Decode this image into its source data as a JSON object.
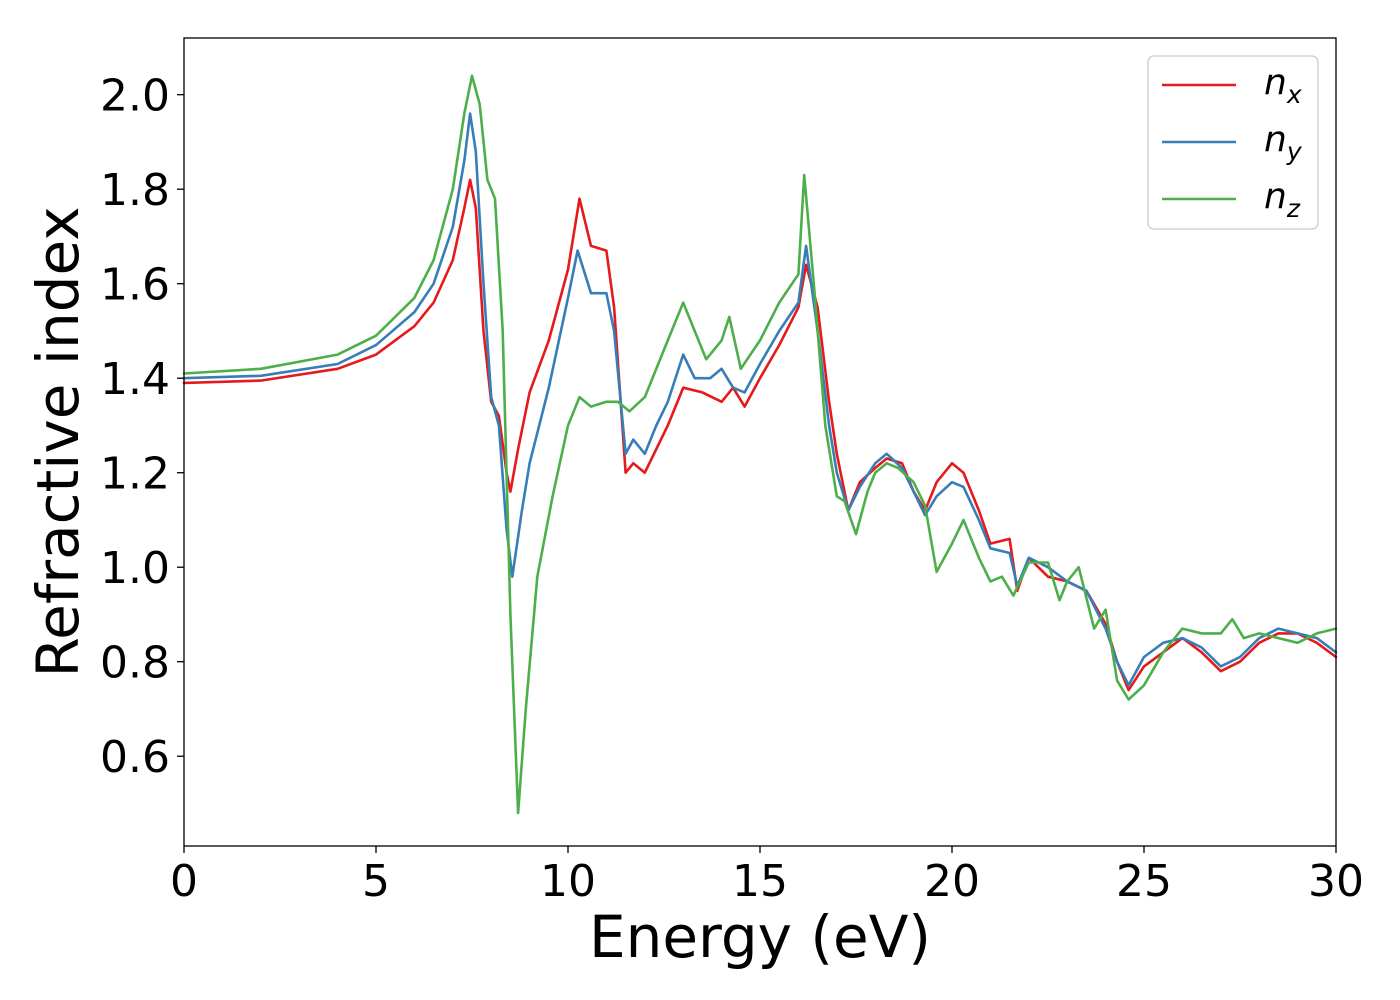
{
  "chart_data": {
    "type": "line",
    "xlabel": "Energy (eV)",
    "ylabel": "Refractive index",
    "xlim": [
      0,
      30
    ],
    "ylim": [
      0.41,
      2.12
    ],
    "xticks": [
      0,
      5,
      10,
      15,
      20,
      25,
      30
    ],
    "yticks": [
      0.6,
      0.8,
      1.0,
      1.2,
      1.4,
      1.6,
      1.8,
      2.0
    ],
    "xtick_labels": [
      "0",
      "5",
      "10",
      "15",
      "20",
      "25",
      "30"
    ],
    "ytick_labels": [
      "0.6",
      "0.8",
      "1.0",
      "1.2",
      "1.4",
      "1.6",
      "1.8",
      "2.0"
    ],
    "legend_position": "top-right",
    "grid": false,
    "series": [
      {
        "name": "n",
        "subscript": "x",
        "color": "#e41a1c",
        "points": [
          [
            0,
            1.39
          ],
          [
            2,
            1.395
          ],
          [
            4,
            1.42
          ],
          [
            5,
            1.45
          ],
          [
            6,
            1.51
          ],
          [
            6.5,
            1.56
          ],
          [
            7,
            1.65
          ],
          [
            7.3,
            1.76
          ],
          [
            7.45,
            1.82
          ],
          [
            7.6,
            1.76
          ],
          [
            7.8,
            1.5
          ],
          [
            8,
            1.35
          ],
          [
            8.2,
            1.32
          ],
          [
            8.4,
            1.2
          ],
          [
            8.5,
            1.16
          ],
          [
            8.7,
            1.25
          ],
          [
            9,
            1.37
          ],
          [
            9.5,
            1.48
          ],
          [
            10,
            1.63
          ],
          [
            10.3,
            1.78
          ],
          [
            10.6,
            1.68
          ],
          [
            11,
            1.67
          ],
          [
            11.2,
            1.55
          ],
          [
            11.5,
            1.2
          ],
          [
            11.7,
            1.22
          ],
          [
            12,
            1.2
          ],
          [
            12.3,
            1.25
          ],
          [
            12.6,
            1.3
          ],
          [
            13,
            1.38
          ],
          [
            13.5,
            1.37
          ],
          [
            14,
            1.35
          ],
          [
            14.3,
            1.38
          ],
          [
            14.6,
            1.34
          ],
          [
            15,
            1.4
          ],
          [
            15.5,
            1.47
          ],
          [
            16,
            1.55
          ],
          [
            16.2,
            1.64
          ],
          [
            16.5,
            1.55
          ],
          [
            16.8,
            1.35
          ],
          [
            17,
            1.24
          ],
          [
            17.3,
            1.12
          ],
          [
            17.6,
            1.18
          ],
          [
            18,
            1.21
          ],
          [
            18.3,
            1.23
          ],
          [
            18.7,
            1.22
          ],
          [
            19,
            1.16
          ],
          [
            19.3,
            1.12
          ],
          [
            19.6,
            1.18
          ],
          [
            20,
            1.22
          ],
          [
            20.3,
            1.2
          ],
          [
            20.7,
            1.12
          ],
          [
            21,
            1.05
          ],
          [
            21.5,
            1.06
          ],
          [
            21.7,
            0.95
          ],
          [
            22,
            1.02
          ],
          [
            22.5,
            0.98
          ],
          [
            23,
            0.97
          ],
          [
            23.5,
            0.95
          ],
          [
            24,
            0.88
          ],
          [
            24.3,
            0.8
          ],
          [
            24.6,
            0.74
          ],
          [
            25,
            0.79
          ],
          [
            25.5,
            0.82
          ],
          [
            26,
            0.85
          ],
          [
            26.5,
            0.82
          ],
          [
            27,
            0.78
          ],
          [
            27.5,
            0.8
          ],
          [
            28,
            0.84
          ],
          [
            28.5,
            0.86
          ],
          [
            29,
            0.86
          ],
          [
            29.5,
            0.84
          ],
          [
            30,
            0.81
          ]
        ]
      },
      {
        "name": "n",
        "subscript": "y",
        "color": "#377eb8",
        "points": [
          [
            0,
            1.4
          ],
          [
            2,
            1.405
          ],
          [
            4,
            1.43
          ],
          [
            5,
            1.47
          ],
          [
            6,
            1.54
          ],
          [
            6.5,
            1.6
          ],
          [
            7,
            1.72
          ],
          [
            7.3,
            1.86
          ],
          [
            7.45,
            1.96
          ],
          [
            7.6,
            1.88
          ],
          [
            7.8,
            1.6
          ],
          [
            8,
            1.36
          ],
          [
            8.2,
            1.3
          ],
          [
            8.4,
            1.08
          ],
          [
            8.55,
            0.98
          ],
          [
            8.8,
            1.12
          ],
          [
            9,
            1.22
          ],
          [
            9.5,
            1.38
          ],
          [
            10,
            1.57
          ],
          [
            10.25,
            1.67
          ],
          [
            10.6,
            1.58
          ],
          [
            11,
            1.58
          ],
          [
            11.2,
            1.5
          ],
          [
            11.5,
            1.24
          ],
          [
            11.7,
            1.27
          ],
          [
            12,
            1.24
          ],
          [
            12.3,
            1.3
          ],
          [
            12.6,
            1.35
          ],
          [
            13,
            1.45
          ],
          [
            13.3,
            1.4
          ],
          [
            13.7,
            1.4
          ],
          [
            14,
            1.42
          ],
          [
            14.3,
            1.38
          ],
          [
            14.6,
            1.37
          ],
          [
            15,
            1.43
          ],
          [
            15.5,
            1.5
          ],
          [
            16,
            1.56
          ],
          [
            16.2,
            1.68
          ],
          [
            16.5,
            1.5
          ],
          [
            16.8,
            1.3
          ],
          [
            17,
            1.2
          ],
          [
            17.3,
            1.12
          ],
          [
            17.6,
            1.17
          ],
          [
            18,
            1.22
          ],
          [
            18.3,
            1.24
          ],
          [
            18.7,
            1.21
          ],
          [
            19,
            1.16
          ],
          [
            19.3,
            1.11
          ],
          [
            19.6,
            1.15
          ],
          [
            20,
            1.18
          ],
          [
            20.3,
            1.17
          ],
          [
            20.7,
            1.1
          ],
          [
            21,
            1.04
          ],
          [
            21.5,
            1.03
          ],
          [
            21.7,
            0.96
          ],
          [
            22,
            1.02
          ],
          [
            22.5,
            1.0
          ],
          [
            23,
            0.97
          ],
          [
            23.5,
            0.95
          ],
          [
            24,
            0.87
          ],
          [
            24.3,
            0.8
          ],
          [
            24.6,
            0.75
          ],
          [
            25,
            0.81
          ],
          [
            25.5,
            0.84
          ],
          [
            26,
            0.85
          ],
          [
            26.5,
            0.83
          ],
          [
            27,
            0.79
          ],
          [
            27.5,
            0.81
          ],
          [
            28,
            0.85
          ],
          [
            28.5,
            0.87
          ],
          [
            29,
            0.86
          ],
          [
            29.5,
            0.85
          ],
          [
            30,
            0.82
          ]
        ]
      },
      {
        "name": "n",
        "subscript": "z",
        "color": "#4daf4a",
        "points": [
          [
            0,
            1.41
          ],
          [
            2,
            1.42
          ],
          [
            4,
            1.45
          ],
          [
            5,
            1.49
          ],
          [
            6,
            1.57
          ],
          [
            6.5,
            1.65
          ],
          [
            7,
            1.8
          ],
          [
            7.3,
            1.96
          ],
          [
            7.5,
            2.04
          ],
          [
            7.7,
            1.98
          ],
          [
            7.9,
            1.82
          ],
          [
            8.1,
            1.78
          ],
          [
            8.3,
            1.5
          ],
          [
            8.5,
            0.9
          ],
          [
            8.7,
            0.48
          ],
          [
            8.9,
            0.7
          ],
          [
            9.2,
            0.98
          ],
          [
            9.6,
            1.15
          ],
          [
            10,
            1.3
          ],
          [
            10.3,
            1.36
          ],
          [
            10.6,
            1.34
          ],
          [
            11,
            1.35
          ],
          [
            11.3,
            1.35
          ],
          [
            11.6,
            1.33
          ],
          [
            12,
            1.36
          ],
          [
            12.3,
            1.42
          ],
          [
            12.6,
            1.48
          ],
          [
            13,
            1.56
          ],
          [
            13.3,
            1.5
          ],
          [
            13.6,
            1.44
          ],
          [
            14,
            1.48
          ],
          [
            14.2,
            1.53
          ],
          [
            14.5,
            1.42
          ],
          [
            15,
            1.48
          ],
          [
            15.5,
            1.56
          ],
          [
            16,
            1.62
          ],
          [
            16.15,
            1.83
          ],
          [
            16.4,
            1.6
          ],
          [
            16.7,
            1.3
          ],
          [
            17,
            1.15
          ],
          [
            17.2,
            1.14
          ],
          [
            17.5,
            1.07
          ],
          [
            17.8,
            1.16
          ],
          [
            18,
            1.2
          ],
          [
            18.3,
            1.22
          ],
          [
            18.6,
            1.21
          ],
          [
            19,
            1.18
          ],
          [
            19.3,
            1.13
          ],
          [
            19.6,
            0.99
          ],
          [
            20,
            1.05
          ],
          [
            20.3,
            1.1
          ],
          [
            20.7,
            1.02
          ],
          [
            21,
            0.97
          ],
          [
            21.3,
            0.98
          ],
          [
            21.6,
            0.94
          ],
          [
            22,
            1.01
          ],
          [
            22.5,
            1.01
          ],
          [
            22.8,
            0.93
          ],
          [
            23,
            0.97
          ],
          [
            23.3,
            1.0
          ],
          [
            23.7,
            0.87
          ],
          [
            24,
            0.91
          ],
          [
            24.3,
            0.76
          ],
          [
            24.6,
            0.72
          ],
          [
            25,
            0.75
          ],
          [
            25.5,
            0.82
          ],
          [
            26,
            0.87
          ],
          [
            26.5,
            0.86
          ],
          [
            27,
            0.86
          ],
          [
            27.3,
            0.89
          ],
          [
            27.6,
            0.85
          ],
          [
            28,
            0.86
          ],
          [
            28.5,
            0.85
          ],
          [
            29,
            0.84
          ],
          [
            29.5,
            0.86
          ],
          [
            30,
            0.87
          ]
        ]
      }
    ]
  }
}
